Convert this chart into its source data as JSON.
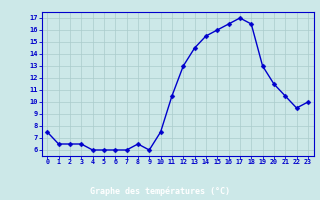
{
  "hours": [
    0,
    1,
    2,
    3,
    4,
    5,
    6,
    7,
    8,
    9,
    10,
    11,
    12,
    13,
    14,
    15,
    16,
    17,
    18,
    19,
    20,
    21,
    22,
    23
  ],
  "temps": [
    7.5,
    6.5,
    6.5,
    6.5,
    6.0,
    6.0,
    6.0,
    6.0,
    6.5,
    6.0,
    7.5,
    10.5,
    13.0,
    14.5,
    15.5,
    16.0,
    16.5,
    17.0,
    16.5,
    13.0,
    11.5,
    10.5,
    9.5,
    10.0
  ],
  "bg_color": "#cce8e8",
  "line_color": "#0000cc",
  "marker_color": "#0000cc",
  "grid_color": "#aacccc",
  "axis_label_color": "#0000cc",
  "tick_color": "#0000cc",
  "xlabel": "Graphe des températures (°C)",
  "ylim": [
    5.5,
    17.5
  ],
  "yticks": [
    6,
    7,
    8,
    9,
    10,
    11,
    12,
    13,
    14,
    15,
    16,
    17
  ],
  "xlim": [
    -0.5,
    23.5
  ],
  "xticks": [
    0,
    1,
    2,
    3,
    4,
    5,
    6,
    7,
    8,
    9,
    10,
    11,
    12,
    13,
    14,
    15,
    16,
    17,
    18,
    19,
    20,
    21,
    22,
    23
  ],
  "xtick_labels": [
    "0",
    "1",
    "2",
    "3",
    "4",
    "5",
    "6",
    "7",
    "8",
    "9",
    "10",
    "11",
    "12",
    "13",
    "14",
    "15",
    "16",
    "17",
    "18",
    "19",
    "20",
    "21",
    "22",
    "23"
  ],
  "line_width": 1.0,
  "marker_size": 2.5,
  "spine_color": "#0000cc",
  "bottom_bar_color": "#0000cc",
  "bottom_bar_text_color": "#0000cc"
}
